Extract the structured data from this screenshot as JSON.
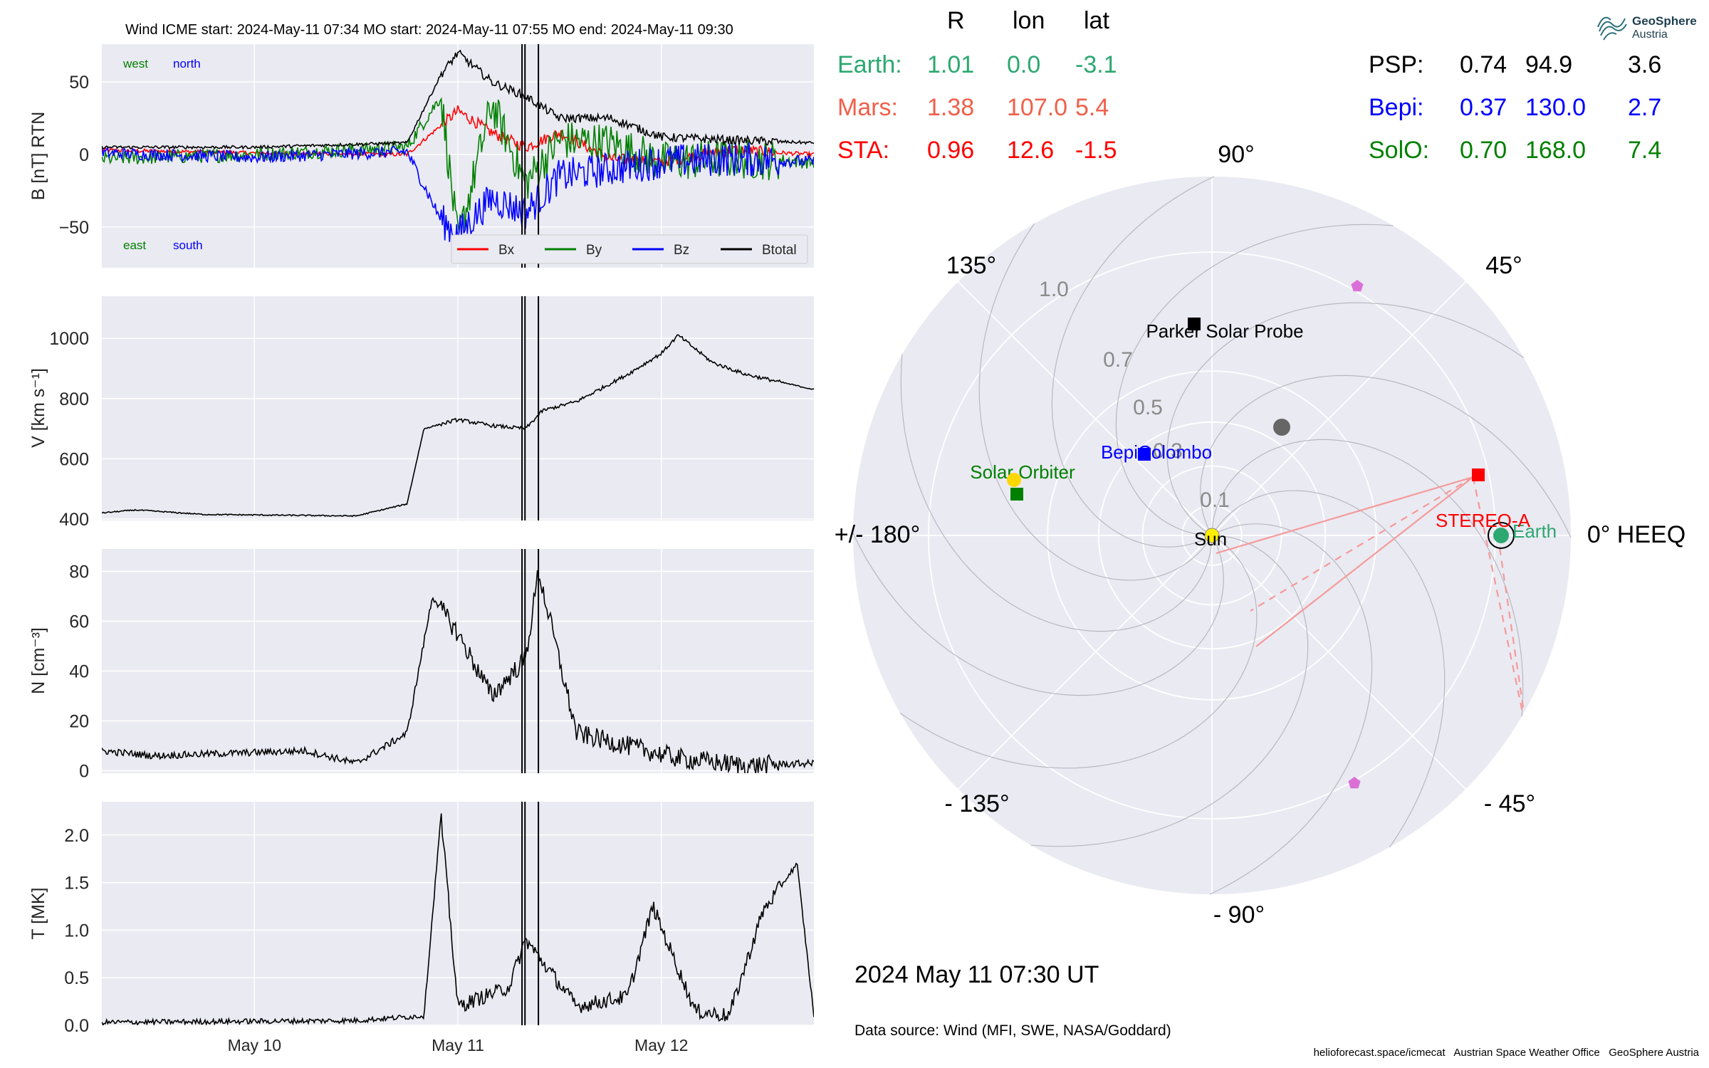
{
  "header": {
    "title": "Wind    ICME start: 2024-May-11 07:34   MO start: 2024-May-11 07:55   MO end: 2024-May-11 09:30"
  },
  "logo": {
    "name": "GeoSphere",
    "sub": "Austria"
  },
  "footer": {
    "date": "2024 May 11  07:30 UT",
    "source": "Data source: Wind (MFI, SWE, NASA/Goddard)",
    "credits": "helioforecast.space/icmecat   Austrian Space Weather Office   GeoSphere Austria"
  },
  "positions_table": {
    "headers": [
      "R",
      "lon",
      "lat"
    ],
    "left_rows": [
      {
        "label": "Earth:",
        "R": "1.01",
        "lon": "0.0",
        "lat": "-3.1",
        "color": "#2ca870"
      },
      {
        "label": "Mars:",
        "R": "1.38",
        "lon": "107.0",
        "lat": "5.4",
        "color": "#f0604a"
      },
      {
        "label": "STA:",
        "R": "0.96",
        "lon": "12.6",
        "lat": "-1.5",
        "color": "#ff0000"
      }
    ],
    "right_rows": [
      {
        "label": "PSP:",
        "R": "0.74",
        "lon": "94.9",
        "lat": "3.6",
        "color": "#000000"
      },
      {
        "label": "Bepi:",
        "R": "0.37",
        "lon": "130.0",
        "lat": "2.7",
        "color": "#0000ff"
      },
      {
        "label": "SolO:",
        "R": "0.70",
        "lon": "168.0",
        "lat": "7.4",
        "color": "#008000"
      }
    ]
  },
  "chart_data": [
    {
      "type": "line",
      "title": "Wind    ICME start: 2024-May-11 07:34   MO start: 2024-May-11 07:55   MO end: 2024-May-11 09:30",
      "ylabel": "B [nT] RTN",
      "ylim": [
        -78,
        76
      ],
      "yticks": [
        -50,
        0,
        50
      ],
      "x_range": [
        "2024-05-09 06:00",
        "2024-05-12 18:00"
      ],
      "xticks": [
        "May 10",
        "May 11",
        "May 12"
      ],
      "annotations": [
        {
          "text": "west",
          "color": "#008000"
        },
        {
          "text": "north",
          "color": "#0000ff"
        },
        {
          "text": "east",
          "color": "#008000"
        },
        {
          "text": "south",
          "color": "#0000ff"
        }
      ],
      "legend": "bottom-right",
      "event_lines": [
        "2024-05-11 07:34",
        "2024-05-11 07:55",
        "2024-05-11 09:30"
      ],
      "series": [
        {
          "name": "Bx",
          "color": "#ff0000",
          "x": [
            "2024-05-09 06:00",
            "2024-05-10 00:00",
            "2024-05-10 18:00",
            "2024-05-10 22:00",
            "2024-05-11 00:00",
            "2024-05-11 04:00",
            "2024-05-11 08:00",
            "2024-05-11 12:00",
            "2024-05-11 18:00",
            "2024-05-12 00:00",
            "2024-05-12 08:00",
            "2024-05-12 18:00"
          ],
          "y": [
            3,
            1,
            0,
            20,
            30,
            15,
            5,
            15,
            -3,
            -5,
            3,
            0
          ]
        },
        {
          "name": "By",
          "color": "#008000",
          "x": [
            "2024-05-09 06:00",
            "2024-05-10 00:00",
            "2024-05-10 18:00",
            "2024-05-10 22:00",
            "2024-05-11 00:00",
            "2024-05-11 04:00",
            "2024-05-11 08:00",
            "2024-05-11 12:00",
            "2024-05-11 18:00",
            "2024-05-12 00:00",
            "2024-05-12 08:00",
            "2024-05-12 18:00"
          ],
          "y": [
            -3,
            0,
            5,
            40,
            -60,
            35,
            -20,
            10,
            8,
            -5,
            -3,
            -5
          ]
        },
        {
          "name": "Bz",
          "color": "#0000ff",
          "x": [
            "2024-05-09 06:00",
            "2024-05-10 00:00",
            "2024-05-10 18:00",
            "2024-05-10 22:00",
            "2024-05-11 00:00",
            "2024-05-11 04:00",
            "2024-05-11 08:00",
            "2024-05-11 12:00",
            "2024-05-11 18:00",
            "2024-05-12 00:00",
            "2024-05-12 08:00",
            "2024-05-12 18:00"
          ],
          "y": [
            1,
            -2,
            2,
            -45,
            -55,
            -30,
            -40,
            -15,
            -10,
            -5,
            -3,
            -5
          ]
        },
        {
          "name": "Btotal",
          "color": "#000000",
          "x": [
            "2024-05-09 06:00",
            "2024-05-10 00:00",
            "2024-05-10 18:00",
            "2024-05-10 22:00",
            "2024-05-11 00:00",
            "2024-05-11 04:00",
            "2024-05-11 08:00",
            "2024-05-11 12:00",
            "2024-05-11 18:00",
            "2024-05-12 00:00",
            "2024-05-12 08:00",
            "2024-05-12 18:00"
          ],
          "y": [
            5,
            5,
            8,
            55,
            70,
            50,
            40,
            25,
            25,
            12,
            10,
            8
          ]
        }
      ]
    },
    {
      "type": "line",
      "ylabel": "V [km s⁻¹]",
      "ylim": [
        395,
        1140
      ],
      "yticks": [
        400,
        600,
        800,
        1000
      ],
      "xticks": [
        "May 10",
        "May 11",
        "May 12"
      ],
      "series": [
        {
          "color": "#000000",
          "x": [
            "2024-05-09 06:00",
            "2024-05-09 10:00",
            "2024-05-09 18:00",
            "2024-05-10 12:00",
            "2024-05-10 18:00",
            "2024-05-10 20:00",
            "2024-05-11 00:00",
            "2024-05-11 04:00",
            "2024-05-11 08:00",
            "2024-05-11 10:00",
            "2024-05-11 14:00",
            "2024-05-11 20:00",
            "2024-05-12 00:00",
            "2024-05-12 02:00",
            "2024-05-12 06:00",
            "2024-05-12 10:00",
            "2024-05-12 18:00"
          ],
          "y": [
            420,
            430,
            415,
            410,
            450,
            700,
            730,
            710,
            700,
            760,
            790,
            880,
            950,
            1010,
            920,
            880,
            830
          ]
        }
      ]
    },
    {
      "type": "line",
      "ylabel": "N [cm⁻³]",
      "ylim": [
        -1,
        89
      ],
      "yticks": [
        0,
        20,
        40,
        60,
        80
      ],
      "xticks": [
        "May 10",
        "May 11",
        "May 12"
      ],
      "series": [
        {
          "color": "#000000",
          "x": [
            "2024-05-09 06:00",
            "2024-05-09 12:00",
            "2024-05-10 06:00",
            "2024-05-10 12:00",
            "2024-05-10 18:00",
            "2024-05-10 21:00",
            "2024-05-11 00:00",
            "2024-05-11 04:00",
            "2024-05-11 08:00",
            "2024-05-11 09:30",
            "2024-05-11 14:00",
            "2024-05-11 20:00",
            "2024-05-12 02:00",
            "2024-05-12 10:00",
            "2024-05-12 18:00"
          ],
          "y": [
            8,
            6,
            8,
            3,
            15,
            70,
            55,
            30,
            45,
            80,
            15,
            10,
            5,
            2,
            3
          ]
        }
      ]
    },
    {
      "type": "line",
      "ylabel": "T [MK]",
      "ylim": [
        0,
        2.35
      ],
      "yticks": [
        0.0,
        0.5,
        1.0,
        1.5,
        2.0
      ],
      "xticks": [
        "May 10",
        "May 11",
        "May 12"
      ],
      "series": [
        {
          "color": "#000000",
          "x": [
            "2024-05-09 06:00",
            "2024-05-10 12:00",
            "2024-05-10 20:00",
            "2024-05-10 22:00",
            "2024-05-11 00:00",
            "2024-05-11 06:00",
            "2024-05-11 08:00",
            "2024-05-11 14:00",
            "2024-05-11 20:00",
            "2024-05-11 23:00",
            "2024-05-12 04:00",
            "2024-05-12 08:00",
            "2024-05-12 12:00",
            "2024-05-12 16:00",
            "2024-05-12 18:00"
          ],
          "y": [
            0.03,
            0.05,
            0.1,
            2.2,
            0.2,
            0.4,
            0.9,
            0.2,
            0.3,
            1.25,
            0.15,
            0.1,
            1.2,
            1.7,
            0.1
          ]
        }
      ]
    },
    {
      "type": "scatter",
      "projection": "polar",
      "r_ticks": [
        "0.1",
        "0.3",
        "0.5",
        "0.7",
        "1.0"
      ],
      "angle_labels": [
        "0° HEEQ",
        "45°",
        "90°",
        "135°",
        "+/- 180°",
        "- 135°",
        "- 90°",
        "- 45°"
      ],
      "bodies": [
        {
          "name": "Sun",
          "r": 0,
          "lon": 0,
          "color": "#ffee00",
          "marker": "circle"
        },
        {
          "name": "Earth",
          "r": 1.01,
          "lon": 0.0,
          "color": "#2ca870",
          "marker": "circle"
        },
        {
          "name": "STEREO-A",
          "r": 0.96,
          "lon": 12.6,
          "color": "#ff0000",
          "marker": "square"
        },
        {
          "name": "Parker Solar Probe",
          "r": 0.74,
          "lon": 94.9,
          "color": "#000000",
          "marker": "square"
        },
        {
          "name": "BepiColombo",
          "r": 0.37,
          "lon": 130.0,
          "color": "#0000ff",
          "marker": "square"
        },
        {
          "name": "Solar Orbiter",
          "r": 0.7,
          "lon": 168.0,
          "color": "#008000",
          "marker": "square"
        },
        {
          "name": "Mars",
          "r": 1.38,
          "lon": 107.0,
          "color": "#666666",
          "marker": "circle"
        }
      ],
      "labels_shown": [
        "Sun",
        "Earth",
        "STEREO-A",
        "Parker Solar Probe",
        "BepiColombo",
        "Solar Orbiter"
      ]
    }
  ]
}
